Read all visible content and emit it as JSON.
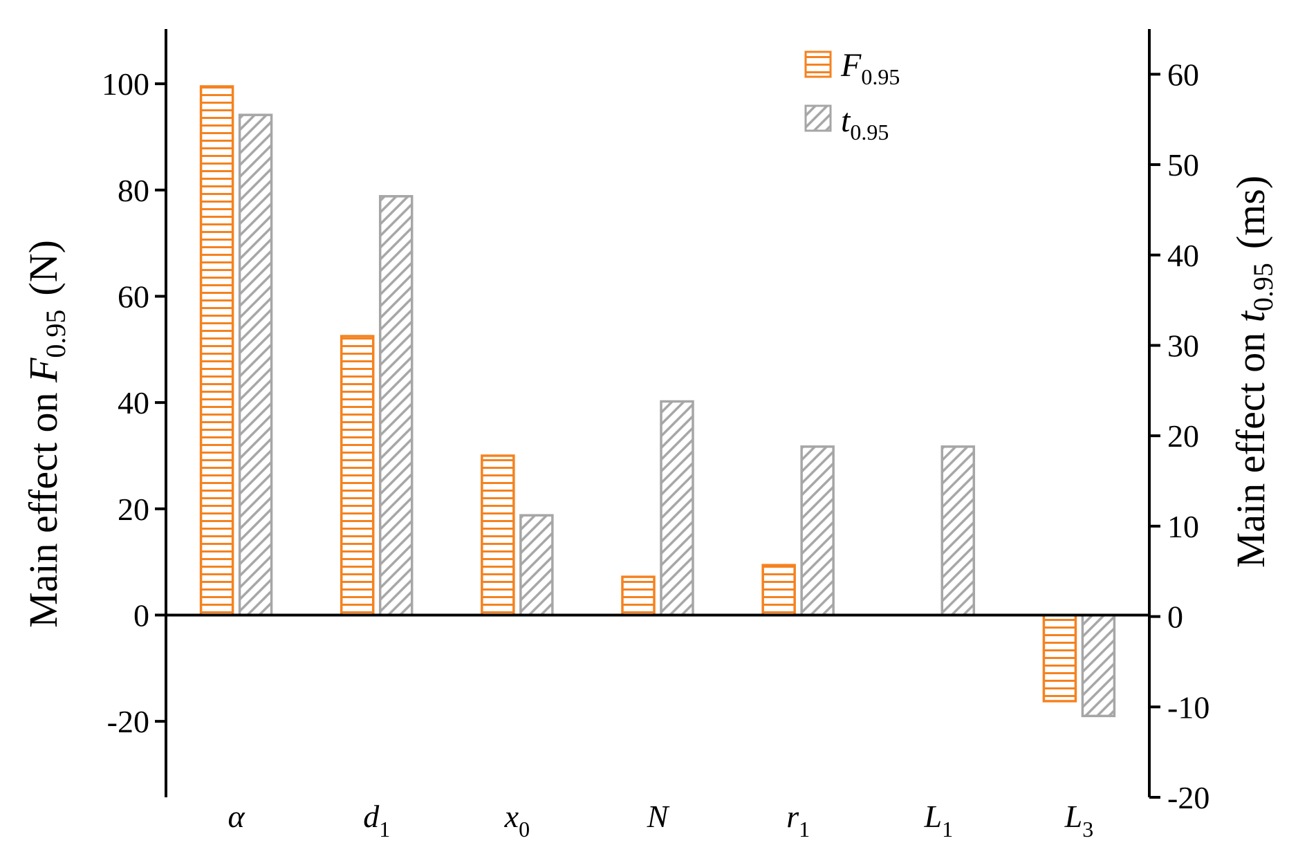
{
  "chart_data": {
    "type": "bar",
    "categories": [
      {
        "main": "α",
        "sub": ""
      },
      {
        "main": "d",
        "sub": "1"
      },
      {
        "main": "x",
        "sub": "0"
      },
      {
        "main": "N",
        "sub": ""
      },
      {
        "main": "r",
        "sub": "1"
      },
      {
        "main": "L",
        "sub": "1"
      },
      {
        "main": "L",
        "sub": "3"
      }
    ],
    "series": [
      {
        "name_main": "F",
        "name_sub": "0.95",
        "axis": "left",
        "color": "#f5821f",
        "pattern": "horizontal-lines",
        "values": [
          99.5,
          52.5,
          30,
          7.2,
          9.4,
          null,
          -16.2
        ]
      },
      {
        "name_main": "t",
        "name_sub": "0.95",
        "axis": "right",
        "color": "#a6a6a6",
        "pattern": "diagonal-hatch",
        "values": [
          55.5,
          46.5,
          11.2,
          23.8,
          18.8,
          18.8,
          -11
        ]
      }
    ],
    "y_left": {
      "title_main": "Main effect on ",
      "title_var": "F",
      "title_sub": "0.95",
      "title_unit": "(N)",
      "ylim": [
        -34.3,
        110.3
      ],
      "ticks": [
        "-20",
        "0",
        "20",
        "40",
        "60",
        "80",
        "100"
      ],
      "tick_values": [
        -20,
        0,
        20,
        40,
        60,
        80,
        100
      ]
    },
    "y_right": {
      "title_main": "Main effect on ",
      "title_var": "t",
      "title_sub": "0.95",
      "title_unit": "(ms)",
      "ylim": [
        -20,
        65
      ],
      "ticks": [
        "-20",
        "-10",
        "0",
        "10",
        "20",
        "30",
        "40",
        "50",
        "60"
      ],
      "tick_values": [
        -20,
        -10,
        0,
        10,
        20,
        30,
        40,
        50,
        60
      ]
    },
    "legend_position": "top-center",
    "grid": false,
    "xlabel": "",
    "title": ""
  }
}
